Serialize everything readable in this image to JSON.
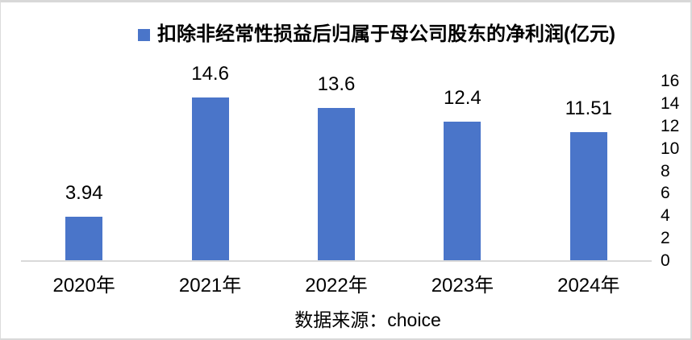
{
  "chart_data": {
    "type": "bar",
    "title": "扣除非经常性损益后归属于母公司股东的净利润(亿元)",
    "legend_entries": [
      "扣除非经常性损益后归属于母公司股东的净利润(亿元)"
    ],
    "legend_position": "top-center",
    "categories": [
      "2020年",
      "2021年",
      "2022年",
      "2023年",
      "2024年"
    ],
    "values": [
      3.94,
      14.6,
      13.6,
      12.4,
      11.51
    ],
    "value_labels": [
      "3.94",
      "14.6",
      "13.6",
      "12.4",
      "11.51"
    ],
    "xlabel": "",
    "ylabel": "",
    "ylim": [
      0,
      16
    ],
    "yticks": [
      0,
      2,
      4,
      6,
      8,
      10,
      12,
      14,
      16
    ],
    "ytick_side": "right",
    "grid": false,
    "bar_color": "#4a75c9",
    "axis_line_color": "#d9d9d9",
    "source_note": "数据来源：choice"
  }
}
